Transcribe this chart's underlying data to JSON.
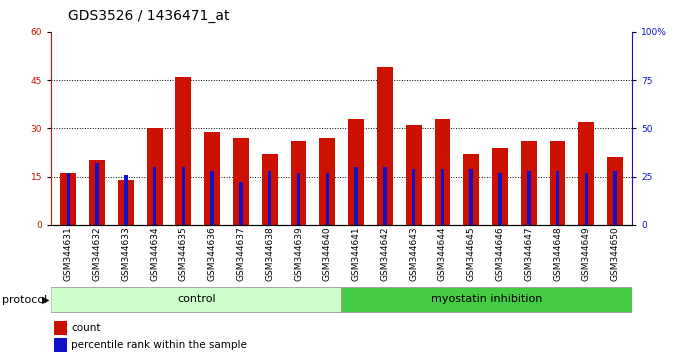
{
  "title": "GDS3526 / 1436471_at",
  "samples": [
    "GSM344631",
    "GSM344632",
    "GSM344633",
    "GSM344634",
    "GSM344635",
    "GSM344636",
    "GSM344637",
    "GSM344638",
    "GSM344639",
    "GSM344640",
    "GSM344641",
    "GSM344642",
    "GSM344643",
    "GSM344644",
    "GSM344645",
    "GSM344646",
    "GSM344647",
    "GSM344648",
    "GSM344649",
    "GSM344650"
  ],
  "count_values": [
    16,
    20,
    14,
    30,
    46,
    29,
    27,
    22,
    26,
    27,
    33,
    49,
    31,
    33,
    22,
    24,
    26,
    26,
    32,
    21
  ],
  "percentile_values": [
    27,
    32,
    26,
    30,
    30,
    28,
    22,
    28,
    27,
    27,
    30,
    30,
    29,
    29,
    29,
    27,
    28,
    28,
    27,
    28
  ],
  "control_count": 10,
  "myostatin_count": 10,
  "control_label": "control",
  "myostatin_label": "myostatin inhibition",
  "protocol_label": "protocol",
  "left_yticks": [
    0,
    15,
    30,
    45,
    60
  ],
  "right_yticks": [
    0,
    25,
    50,
    75,
    100
  ],
  "ylim_left": [
    0,
    60
  ],
  "ylim_right": [
    0,
    100
  ],
  "bar_color_red": "#cc1100",
  "bar_color_blue": "#1111cc",
  "control_bg": "#ccffcc",
  "myostatin_bg": "#44cc44",
  "bg_color": "#ffffff",
  "bar_width": 0.55,
  "blue_bar_width": 0.12,
  "title_fontsize": 10,
  "tick_fontsize": 6.5,
  "label_fontsize": 8,
  "legend_fontsize": 7.5
}
